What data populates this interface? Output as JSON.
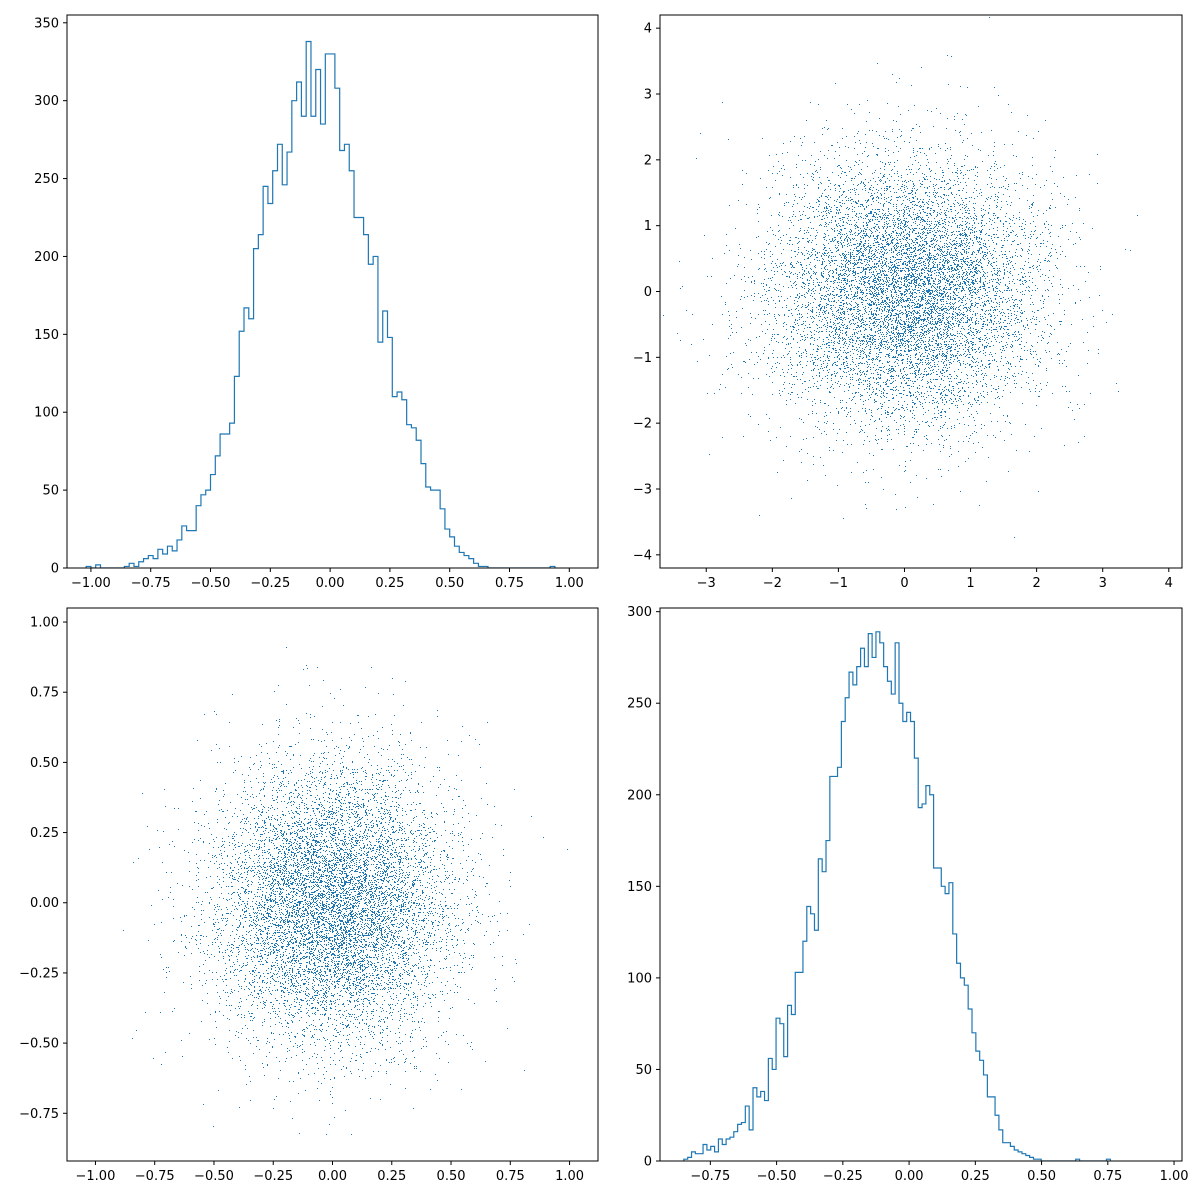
{
  "style": {
    "series_color": "#1f77b4",
    "background": "#ffffff"
  },
  "chart_data": [
    {
      "id": "top-left",
      "type": "histogram",
      "histtype": "step",
      "xlim": [
        -1.1,
        1.12
      ],
      "ylim": [
        0,
        355
      ],
      "xticks": [
        -1.0,
        -0.75,
        -0.5,
        -0.25,
        0.0,
        0.25,
        0.5,
        0.75,
        1.0
      ],
      "xtick_labels": [
        "−1.00",
        "−0.75",
        "−0.50",
        "−0.25",
        "0.00",
        "0.25",
        "0.50",
        "0.75",
        "1.00"
      ],
      "yticks": [
        0,
        50,
        100,
        150,
        200,
        250,
        300,
        350
      ],
      "ytick_labels": [
        "0",
        "50",
        "100",
        "150",
        "200",
        "250",
        "300",
        "350"
      ],
      "bin_start": -1.02,
      "bin_width": 0.02,
      "counts": [
        1,
        0,
        2,
        0,
        0,
        0,
        0,
        0,
        1,
        3,
        1,
        4,
        6,
        8,
        6,
        12,
        9,
        14,
        11,
        18,
        27,
        24,
        24,
        40,
        47,
        50,
        60,
        72,
        86,
        86,
        93,
        123,
        152,
        167,
        160,
        205,
        214,
        245,
        234,
        255,
        272,
        246,
        267,
        300,
        312,
        290,
        338,
        290,
        320,
        285,
        330,
        330,
        308,
        268,
        272,
        255,
        225,
        225,
        214,
        195,
        200,
        145,
        165,
        148,
        110,
        113,
        108,
        92,
        90,
        82,
        67,
        52,
        50,
        50,
        38,
        25,
        20,
        14,
        10,
        8,
        6,
        3,
        1,
        1,
        0,
        0,
        0,
        0,
        0,
        0,
        0,
        0,
        0,
        0,
        0,
        0,
        0,
        1
      ]
    },
    {
      "id": "top-right",
      "type": "scatter",
      "marker": "pixel",
      "n_points": 10000,
      "distribution": "normal",
      "mean": [
        0,
        0
      ],
      "std": [
        1,
        1
      ],
      "xlim": [
        -3.7,
        4.2
      ],
      "ylim": [
        -4.2,
        4.2
      ],
      "xticks": [
        -3,
        -2,
        -1,
        0,
        1,
        2,
        3,
        4
      ],
      "xtick_labels": [
        "−3",
        "−2",
        "−1",
        "0",
        "1",
        "2",
        "3",
        "4"
      ],
      "yticks": [
        -4,
        -3,
        -2,
        -1,
        0,
        1,
        2,
        3,
        4
      ],
      "ytick_labels": [
        "−4",
        "−3",
        "−2",
        "−1",
        "0",
        "1",
        "2",
        "3",
        "4"
      ]
    },
    {
      "id": "bottom-left",
      "type": "scatter",
      "marker": "pixel",
      "n_points": 10000,
      "distribution": "normal",
      "mean": [
        0,
        0
      ],
      "std": [
        0.25,
        0.25
      ],
      "xlim": [
        -1.12,
        1.12
      ],
      "ylim": [
        -0.92,
        1.05
      ],
      "xticks": [
        -1.0,
        -0.75,
        -0.5,
        -0.25,
        0.0,
        0.25,
        0.5,
        0.75,
        1.0
      ],
      "xtick_labels": [
        "−1.00",
        "−0.75",
        "−0.50",
        "−0.25",
        "0.00",
        "0.25",
        "0.50",
        "0.75",
        "1.00"
      ],
      "yticks": [
        -0.75,
        -0.5,
        -0.25,
        0.0,
        0.25,
        0.5,
        0.75,
        1.0
      ],
      "ytick_labels": [
        "−0.75",
        "−0.50",
        "−0.25",
        "0.00",
        "0.25",
        "0.50",
        "0.75",
        "1.00"
      ]
    },
    {
      "id": "bottom-right",
      "type": "histogram",
      "histtype": "step",
      "xlim": [
        -0.94,
        1.03
      ],
      "ylim": [
        0,
        302
      ],
      "xticks": [
        -0.75,
        -0.5,
        -0.25,
        0.0,
        0.25,
        0.5,
        0.75,
        1.0
      ],
      "xtick_labels": [
        "−0.75",
        "−0.50",
        "−0.25",
        "0.00",
        "0.25",
        "0.50",
        "0.75",
        "1.00"
      ],
      "yticks": [
        0,
        50,
        100,
        150,
        200,
        250,
        300
      ],
      "ytick_labels": [
        "0",
        "50",
        "100",
        "150",
        "200",
        "250",
        "300"
      ],
      "bin_start": -0.85,
      "bin_width": 0.0145,
      "counts": [
        1,
        2,
        5,
        4,
        4,
        9,
        6,
        8,
        5,
        12,
        9,
        12,
        13,
        16,
        20,
        21,
        30,
        17,
        40,
        35,
        38,
        33,
        56,
        50,
        78,
        75,
        57,
        85,
        80,
        103,
        103,
        120,
        139,
        135,
        126,
        165,
        158,
        175,
        210,
        210,
        215,
        240,
        253,
        267,
        260,
        270,
        280,
        270,
        288,
        275,
        289,
        283,
        270,
        262,
        255,
        283,
        250,
        240,
        245,
        240,
        220,
        193,
        195,
        205,
        200,
        160,
        160,
        150,
        146,
        152,
        124,
        108,
        100,
        96,
        83,
        70,
        60,
        55,
        47,
        35,
        35,
        25,
        17,
        10,
        10,
        8,
        6,
        5,
        4,
        3,
        2,
        1,
        1,
        0,
        0,
        0,
        0,
        0,
        0,
        0,
        0,
        0,
        1,
        0,
        0,
        0,
        0,
        0,
        0,
        0,
        1
      ]
    }
  ]
}
